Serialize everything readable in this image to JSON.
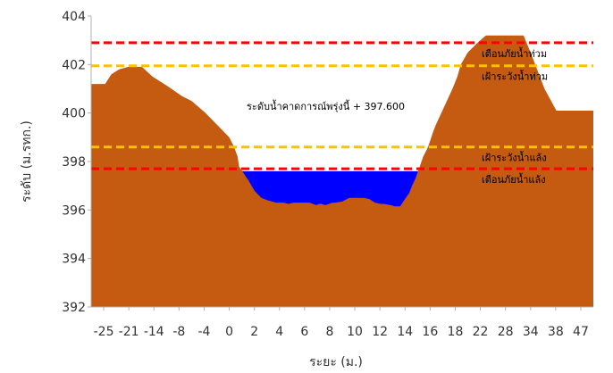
{
  "chart_data": {
    "type": "area",
    "title": "",
    "xlabel": "ระยะ (ม.)",
    "ylabel": "ระดับ (ม.รทก.)",
    "ylim": [
      392,
      404
    ],
    "yticks": [
      392,
      394,
      396,
      398,
      400,
      402,
      404
    ],
    "ytick_labels": [
      "392",
      "394",
      "396",
      "398",
      "400",
      "402",
      "404"
    ],
    "grid": false,
    "legend": "none",
    "categories": [
      "-25",
      "-21",
      "-14",
      "-8",
      "-4",
      "0",
      "2",
      "4",
      "6",
      "8",
      "10",
      "12",
      "14",
      "16",
      "18",
      "22",
      "28",
      "34",
      "38",
      "47"
    ],
    "series": [
      {
        "role": "ground",
        "color": "#c55a11",
        "x": [
          -25.0,
          -24.2,
          -23.0,
          -22.1,
          -21.0,
          -19.7,
          -17.7,
          -16.2,
          -14.0,
          -12.0,
          -10.6,
          -8.6,
          -6.9,
          -5.2,
          -4.5,
          -4.0,
          -3.8,
          -3.1,
          -2.4,
          -1.6,
          -0.6,
          0.3,
          1.0,
          1.5,
          2.6,
          3.3,
          4.0,
          4.6,
          5.7,
          6.3,
          7.3,
          7.7,
          8.0,
          8.6,
          9.6,
          10.0,
          11.0,
          12.0,
          12.2,
          13.8,
          14.1,
          14.9,
          15.7,
          16.5,
          17.0,
          17.9,
          18.0,
          18.5,
          19.3,
          20.1,
          20.6,
          21.0,
          21.5,
          22.0,
          22.6,
          23.3,
          24.0,
          24.4,
          25.2,
          26.0,
          26.8,
          27.5,
          28.0,
          29.0,
          30.4,
          31.6,
          32.7,
          34.0,
          35.2,
          37.0,
          38.0,
          40.0,
          41.7,
          44.0,
          47.0
        ],
        "values": [
          401.2,
          401.2,
          401.2,
          401.6,
          401.8,
          401.9,
          401.9,
          401.5,
          401.1,
          400.7,
          400.5,
          400.0,
          399.5,
          399.0,
          398.6,
          398.2,
          397.8,
          397.5,
          397.2,
          396.8,
          396.5,
          396.4,
          396.35,
          396.3,
          396.3,
          396.25,
          396.3,
          396.3,
          396.3,
          396.3,
          396.2,
          396.25,
          396.25,
          396.2,
          396.3,
          396.3,
          396.35,
          396.5,
          396.5,
          396.5,
          396.5,
          396.45,
          396.3,
          396.25,
          396.25,
          396.2,
          396.2,
          396.15,
          396.15,
          396.5,
          396.7,
          397.0,
          397.3,
          397.7,
          398.2,
          398.6,
          399.2,
          399.5,
          400.0,
          400.5,
          401.0,
          401.5,
          402.0,
          402.5,
          402.9,
          403.2,
          403.2,
          403.2,
          403.2,
          403.2,
          402.5,
          401.0,
          400.1,
          400.1,
          400.1
        ]
      },
      {
        "role": "water",
        "color": "#0000ff",
        "level": 397.6
      }
    ],
    "thresholds": [
      {
        "label": "เตือนภัยน้ำท่วม",
        "value": 402.9,
        "color": "#ff0000"
      },
      {
        "label": "เฝ้าระวังน้ำท่วม",
        "value": 401.95,
        "color": "#ffc000"
      },
      {
        "label": "เฝ้าระวังน้ำแล้ง",
        "value": 398.6,
        "color": "#ffc000"
      },
      {
        "label": "เตือนภัยน้ำแล้ง",
        "value": 397.7,
        "color": "#ff0000"
      }
    ],
    "annotations": [
      {
        "text": "ระดับน้ำคาดการณ์พรุ่งนี้ + 397.600"
      }
    ]
  }
}
